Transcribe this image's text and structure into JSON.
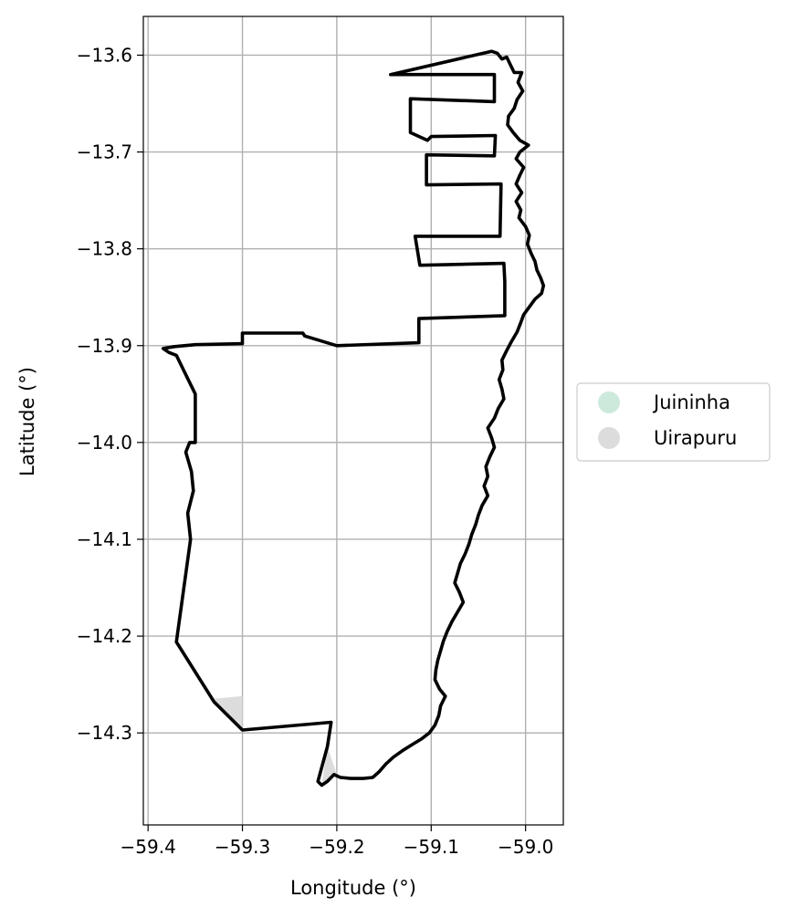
{
  "chart_data": {
    "type": "map",
    "xlabel": "Longitude (°)",
    "ylabel": "Latitude (°)",
    "xlim": [
      -59.405,
      -58.96
    ],
    "ylim": [
      -14.395,
      -13.56
    ],
    "grid": true,
    "x_ticks": [
      {
        "value": -59.4,
        "label": "−59.4"
      },
      {
        "value": -59.3,
        "label": "−59.3"
      },
      {
        "value": -59.2,
        "label": "−59.2"
      },
      {
        "value": -59.1,
        "label": "−59.1"
      },
      {
        "value": -59.0,
        "label": "−59.0"
      }
    ],
    "y_ticks": [
      {
        "value": -13.6,
        "label": "−13.6"
      },
      {
        "value": -13.7,
        "label": "−13.7"
      },
      {
        "value": -13.8,
        "label": "−13.8"
      },
      {
        "value": -13.9,
        "label": "−13.9"
      },
      {
        "value": -14.0,
        "label": "−14.0"
      },
      {
        "value": -14.1,
        "label": "−14.1"
      },
      {
        "value": -14.2,
        "label": "−14.2"
      },
      {
        "value": -14.3,
        "label": "−14.3"
      }
    ],
    "legend": {
      "position": "right",
      "entries": [
        {
          "label": "Juininha",
          "color": "#cde9dc"
        },
        {
          "label": "Uirapuru",
          "color": "#dcdcdc"
        }
      ]
    },
    "boundary": {
      "color": "#000000",
      "coords": [
        [
          -59.036,
          -13.596
        ],
        [
          -59.03,
          -13.598
        ],
        [
          -59.025,
          -13.604
        ],
        [
          -59.02,
          -13.602
        ],
        [
          -59.016,
          -13.61
        ],
        [
          -59.012,
          -13.618
        ],
        [
          -59.004,
          -13.618
        ],
        [
          -59.008,
          -13.628
        ],
        [
          -59.003,
          -13.637
        ],
        [
          -59.009,
          -13.646
        ],
        [
          -59.012,
          -13.655
        ],
        [
          -59.018,
          -13.663
        ],
        [
          -59.019,
          -13.672
        ],
        [
          -59.013,
          -13.68
        ],
        [
          -59.006,
          -13.688
        ],
        [
          -58.997,
          -13.693
        ],
        [
          -59.006,
          -13.7
        ],
        [
          -59.01,
          -13.707
        ],
        [
          -59.002,
          -13.716
        ],
        [
          -59.006,
          -13.724
        ],
        [
          -59.01,
          -13.733
        ],
        [
          -59.004,
          -13.742
        ],
        [
          -59.01,
          -13.751
        ],
        [
          -59.005,
          -13.76
        ],
        [
          -59.007,
          -13.768
        ],
        [
          -59.0,
          -13.777
        ],
        [
          -58.996,
          -13.786
        ],
        [
          -58.998,
          -13.795
        ],
        [
          -58.994,
          -13.805
        ],
        [
          -58.99,
          -13.813
        ],
        [
          -58.988,
          -13.822
        ],
        [
          -58.984,
          -13.83
        ],
        [
          -58.981,
          -13.838
        ],
        [
          -58.983,
          -13.846
        ],
        [
          -58.99,
          -13.852
        ],
        [
          -58.996,
          -13.86
        ],
        [
          -59.002,
          -13.868
        ],
        [
          -59.005,
          -13.876
        ],
        [
          -59.009,
          -13.886
        ],
        [
          -59.015,
          -13.896
        ],
        [
          -59.02,
          -13.905
        ],
        [
          -59.025,
          -13.915
        ],
        [
          -59.024,
          -13.925
        ],
        [
          -59.028,
          -13.935
        ],
        [
          -59.025,
          -13.945
        ],
        [
          -59.023,
          -13.955
        ],
        [
          -59.029,
          -13.965
        ],
        [
          -59.033,
          -13.975
        ],
        [
          -59.04,
          -13.985
        ],
        [
          -59.036,
          -13.995
        ],
        [
          -59.033,
          -14.005
        ],
        [
          -59.038,
          -14.015
        ],
        [
          -59.042,
          -14.025
        ],
        [
          -59.04,
          -14.035
        ],
        [
          -59.044,
          -14.045
        ],
        [
          -59.04,
          -14.055
        ],
        [
          -59.046,
          -14.065
        ],
        [
          -59.05,
          -14.075
        ],
        [
          -59.053,
          -14.085
        ],
        [
          -59.057,
          -14.095
        ],
        [
          -59.06,
          -14.105
        ],
        [
          -59.064,
          -14.115
        ],
        [
          -59.069,
          -14.125
        ],
        [
          -59.072,
          -14.135
        ],
        [
          -59.075,
          -14.145
        ],
        [
          -59.07,
          -14.155
        ],
        [
          -59.066,
          -14.165
        ],
        [
          -59.072,
          -14.175
        ],
        [
          -59.078,
          -14.185
        ],
        [
          -59.083,
          -14.195
        ],
        [
          -59.087,
          -14.205
        ],
        [
          -59.09,
          -14.215
        ],
        [
          -59.093,
          -14.225
        ],
        [
          -59.095,
          -14.235
        ],
        [
          -59.096,
          -14.245
        ],
        [
          -59.091,
          -14.255
        ],
        [
          -59.085,
          -14.262
        ],
        [
          -59.09,
          -14.272
        ],
        [
          -59.092,
          -14.282
        ],
        [
          -59.096,
          -14.292
        ],
        [
          -59.102,
          -14.3
        ],
        [
          -59.11,
          -14.306
        ],
        [
          -59.12,
          -14.312
        ],
        [
          -59.13,
          -14.318
        ],
        [
          -59.14,
          -14.325
        ],
        [
          -59.148,
          -14.332
        ],
        [
          -59.155,
          -14.34
        ],
        [
          -59.162,
          -14.346
        ],
        [
          -59.172,
          -14.347
        ],
        [
          -59.185,
          -14.347
        ],
        [
          -59.196,
          -14.346
        ],
        [
          -59.203,
          -14.343
        ],
        [
          -59.21,
          -14.35
        ],
        [
          -59.216,
          -14.354
        ],
        [
          -59.22,
          -14.35
        ],
        [
          -59.21,
          -14.314
        ],
        [
          -59.206,
          -14.289
        ],
        [
          -59.3,
          -14.297
        ],
        [
          -59.33,
          -14.268
        ],
        [
          -59.37,
          -14.206
        ],
        [
          -59.355,
          -14.1
        ],
        [
          -59.358,
          -14.073
        ],
        [
          -59.352,
          -14.05
        ],
        [
          -59.354,
          -14.03
        ],
        [
          -59.36,
          -14.01
        ],
        [
          -59.356,
          -14.0
        ],
        [
          -59.35,
          -14.0
        ],
        [
          -59.35,
          -13.95
        ],
        [
          -59.36,
          -13.93
        ],
        [
          -59.37,
          -13.91
        ],
        [
          -59.378,
          -13.907
        ],
        [
          -59.384,
          -13.903
        ],
        [
          -59.372,
          -13.901
        ],
        [
          -59.35,
          -13.899
        ],
        [
          -59.3,
          -13.898
        ],
        [
          -59.3,
          -13.887
        ],
        [
          -59.236,
          -13.887
        ],
        [
          -59.234,
          -13.89
        ],
        [
          -59.2,
          -13.9
        ],
        [
          -59.113,
          -13.897
        ],
        [
          -59.113,
          -13.872
        ],
        [
          -59.022,
          -13.869
        ],
        [
          -59.022,
          -13.834
        ],
        [
          -59.023,
          -13.815
        ],
        [
          -59.112,
          -13.817
        ],
        [
          -59.117,
          -13.787
        ],
        [
          -59.027,
          -13.787
        ],
        [
          -59.026,
          -13.733
        ],
        [
          -59.105,
          -13.734
        ],
        [
          -59.105,
          -13.703
        ],
        [
          -59.033,
          -13.704
        ],
        [
          -59.032,
          -13.683
        ],
        [
          -59.1,
          -13.684
        ],
        [
          -59.104,
          -13.688
        ],
        [
          -59.122,
          -13.68
        ],
        [
          -59.122,
          -13.645
        ],
        [
          -59.033,
          -13.648
        ],
        [
          -59.033,
          -13.62
        ],
        [
          -59.143,
          -13.62
        ],
        [
          -59.036,
          -13.596
        ]
      ]
    },
    "regions": [
      {
        "name": "Uirapuru",
        "color": "#dcdcdc",
        "coords": [
          [
            -59.335,
            -14.265
          ],
          [
            -59.3,
            -14.262
          ],
          [
            -59.3,
            -14.297
          ]
        ]
      },
      {
        "name": "Uirapuru",
        "color": "#dcdcdc",
        "coords": [
          [
            -59.21,
            -14.314
          ],
          [
            -59.2,
            -14.343
          ],
          [
            -59.216,
            -14.354
          ]
        ]
      }
    ]
  }
}
